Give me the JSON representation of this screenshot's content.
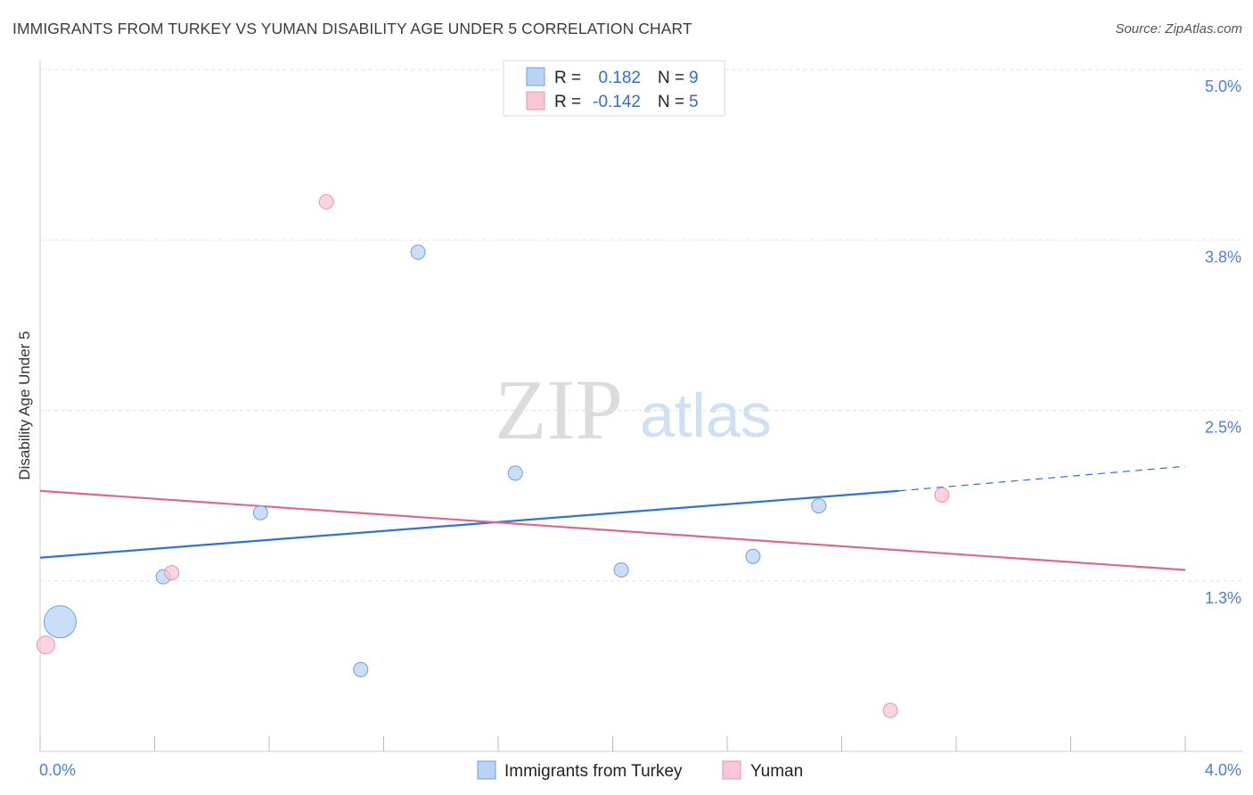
{
  "header": {
    "title": "IMMIGRANTS FROM TURKEY VS YUMAN DISABILITY AGE UNDER 5 CORRELATION CHART",
    "source": "Source: ZipAtlas.com"
  },
  "watermark": {
    "zip": "ZIP",
    "atlas": "atlas"
  },
  "colors": {
    "turkey_fill": "#b9d3f5",
    "turkey_stroke": "#6e9fe0",
    "turkey_line": "#2f73d6",
    "yuman_fill": "#f9c6d4",
    "yuman_stroke": "#e894ad",
    "yuman_line": "#e0668f",
    "tick_label": "#4a7fd0"
  },
  "chart_data": {
    "type": "scatter",
    "title": "IMMIGRANTS FROM TURKEY VS YUMAN DISABILITY AGE UNDER 5 CORRELATION CHART",
    "xlabel": "",
    "ylabel": "Disability Age Under 5",
    "xlim": [
      0.0,
      4.0
    ],
    "ylim": [
      0.0,
      5.0
    ],
    "x_tick_labels": [
      "0.0%",
      "4.0%"
    ],
    "y_ticks": [
      1.25,
      2.5,
      3.75,
      5.0
    ],
    "y_tick_labels": [
      "1.3%",
      "2.5%",
      "3.8%",
      "5.0%"
    ],
    "grid": true,
    "legend": [
      {
        "name": "Immigrants from Turkey",
        "r_label": "R =",
        "r_value": "0.182",
        "n_label": "N =",
        "n_value": "9"
      },
      {
        "name": "Yuman",
        "r_label": "R =",
        "r_value": "-0.142",
        "n_label": "N =",
        "n_value": "5"
      }
    ],
    "series": [
      {
        "name": "Immigrants from Turkey",
        "points": [
          {
            "x": 0.07,
            "y": 0.95,
            "size": 3
          },
          {
            "x": 0.43,
            "y": 1.28,
            "size": 1
          },
          {
            "x": 0.77,
            "y": 1.75,
            "size": 1
          },
          {
            "x": 1.12,
            "y": 0.6,
            "size": 1
          },
          {
            "x": 1.32,
            "y": 3.66,
            "size": 1
          },
          {
            "x": 1.66,
            "y": 2.04,
            "size": 1
          },
          {
            "x": 2.03,
            "y": 1.33,
            "size": 1
          },
          {
            "x": 2.49,
            "y": 1.43,
            "size": 1
          },
          {
            "x": 2.72,
            "y": 1.8,
            "size": 1
          }
        ],
        "trend": {
          "x0": 0.0,
          "y0": 1.42,
          "x1": 3.0,
          "y1": 1.91,
          "dash_to_x": 4.0,
          "dash_to_y": 2.09
        }
      },
      {
        "name": "Yuman",
        "points": [
          {
            "x": 0.02,
            "y": 0.78,
            "size": 1.4
          },
          {
            "x": 0.46,
            "y": 1.31,
            "size": 1
          },
          {
            "x": 1.0,
            "y": 4.03,
            "size": 1
          },
          {
            "x": 2.97,
            "y": 0.3,
            "size": 1
          },
          {
            "x": 3.15,
            "y": 1.88,
            "size": 1
          }
        ],
        "trend": {
          "x0": 0.0,
          "y0": 1.91,
          "x1": 4.0,
          "y1": 1.33
        }
      }
    ]
  }
}
